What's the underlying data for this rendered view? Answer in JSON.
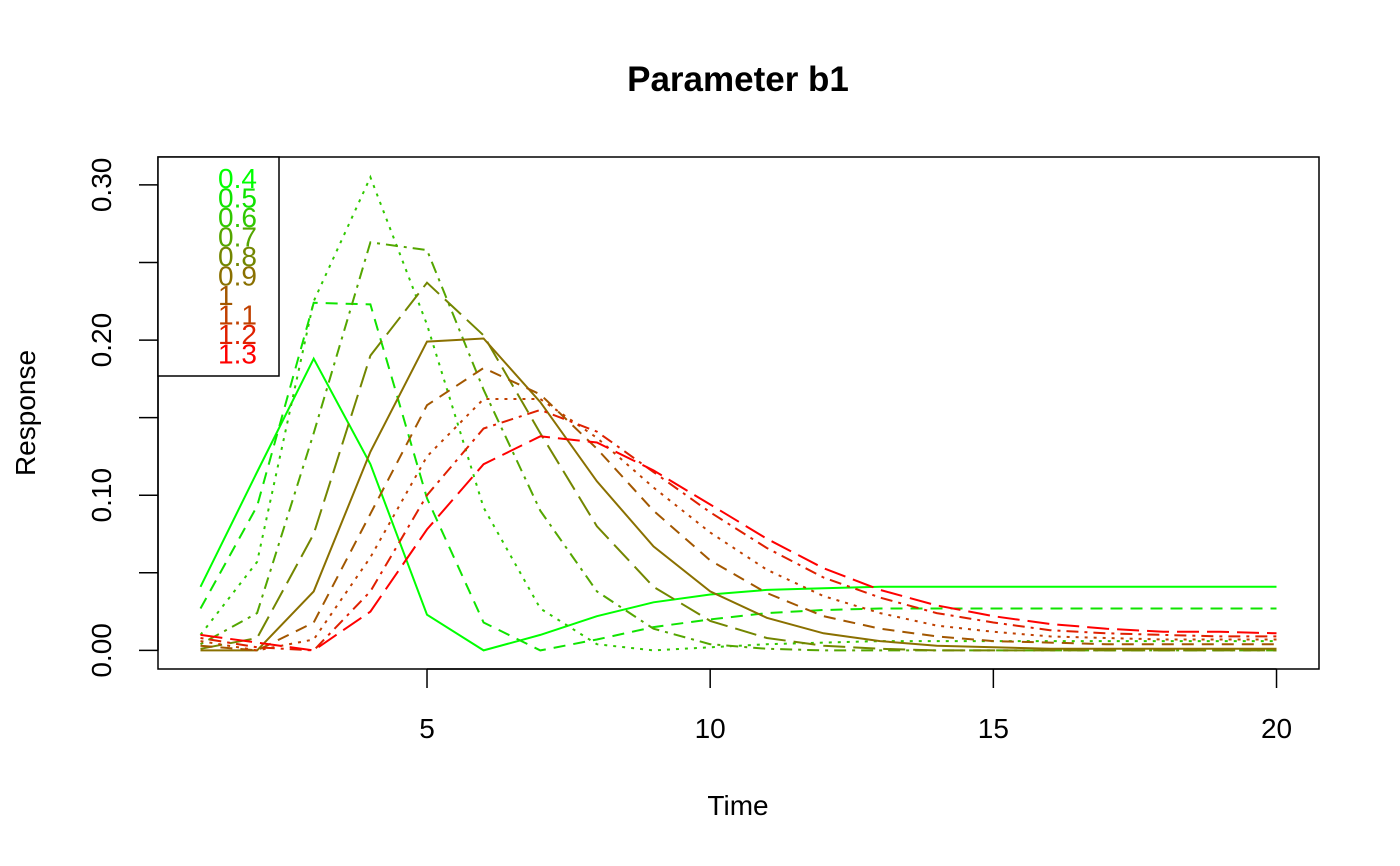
{
  "chart_data": {
    "type": "line",
    "title": "Parameter b1",
    "xlabel": "Time",
    "ylabel": "Response",
    "xlim": [
      0.25,
      20.75
    ],
    "ylim": [
      -0.012,
      0.318
    ],
    "x_ticks": [
      5,
      10,
      15,
      20
    ],
    "x_tick_labels": [
      "5",
      "10",
      "15",
      "20"
    ],
    "y_ticks": [
      0.0,
      0.05,
      0.1,
      0.15,
      0.2,
      0.25,
      0.3
    ],
    "y_tick_labels": [
      "0.00",
      "",
      "0.10",
      "",
      "0.20",
      "",
      "0.30"
    ],
    "grid": false,
    "legend_position": "top-left",
    "x": [
      1,
      2,
      3,
      4,
      5,
      6,
      7,
      8,
      9,
      10,
      11,
      12,
      13,
      14,
      15,
      16,
      17,
      18,
      19,
      20
    ],
    "series": [
      {
        "name": "0.4",
        "color": "#00ff00",
        "dash": "solid",
        "values": [
          0.041,
          0.115,
          0.188,
          0.12,
          0.023,
          0.0,
          0.01,
          0.022,
          0.031,
          0.036,
          0.039,
          0.04,
          0.041,
          0.041,
          0.041,
          0.041,
          0.041,
          0.041,
          0.041,
          0.041
        ]
      },
      {
        "name": "0.5",
        "color": "#0fe400",
        "dash": "dashed",
        "values": [
          0.027,
          0.093,
          0.224,
          0.223,
          0.098,
          0.018,
          0.0,
          0.007,
          0.015,
          0.02,
          0.024,
          0.026,
          0.027,
          0.027,
          0.027,
          0.027,
          0.027,
          0.027,
          0.027,
          0.027
        ]
      },
      {
        "name": "0.6",
        "color": "#30c800",
        "dash": "dotted",
        "values": [
          0.01,
          0.057,
          0.225,
          0.305,
          0.21,
          0.092,
          0.027,
          0.004,
          0.0,
          0.002,
          0.004,
          0.005,
          0.006,
          0.006,
          0.006,
          0.006,
          0.006,
          0.006,
          0.006,
          0.006
        ]
      },
      {
        "name": "0.7",
        "color": "#54a600",
        "dash": "dotdash",
        "values": [
          0.004,
          0.024,
          0.14,
          0.263,
          0.258,
          0.168,
          0.09,
          0.038,
          0.014,
          0.004,
          0.001,
          0.0,
          0.0,
          0.0,
          0.0,
          0.0,
          0.0,
          0.0,
          0.0,
          0.0
        ]
      },
      {
        "name": "0.8",
        "color": "#738600",
        "dash": "longdash",
        "values": [
          0.001,
          0.008,
          0.075,
          0.19,
          0.237,
          0.203,
          0.14,
          0.08,
          0.041,
          0.019,
          0.008,
          0.003,
          0.001,
          0.0,
          0.0,
          0.0,
          0.0,
          0.0,
          0.0,
          0.0
        ]
      },
      {
        "name": "0.9",
        "color": "#8a7000",
        "dash": "solid",
        "values": [
          0.0,
          0.0,
          0.038,
          0.128,
          0.199,
          0.201,
          0.16,
          0.109,
          0.067,
          0.038,
          0.021,
          0.011,
          0.006,
          0.003,
          0.002,
          0.001,
          0.001,
          0.001,
          0.001,
          0.001
        ]
      },
      {
        "name": "1",
        "color": "#a25700",
        "dash": "dashed",
        "values": [
          0.003,
          0.0,
          0.018,
          0.088,
          0.158,
          0.182,
          0.165,
          0.13,
          0.09,
          0.058,
          0.037,
          0.022,
          0.014,
          0.009,
          0.006,
          0.005,
          0.004,
          0.004,
          0.004,
          0.004
        ]
      },
      {
        "name": "1.1",
        "color": "#c04000",
        "dash": "dotted",
        "values": [
          0.006,
          0.0,
          0.007,
          0.06,
          0.125,
          0.162,
          0.162,
          0.137,
          0.105,
          0.076,
          0.052,
          0.035,
          0.024,
          0.016,
          0.012,
          0.009,
          0.008,
          0.007,
          0.007,
          0.007
        ]
      },
      {
        "name": "1.2",
        "color": "#df2000",
        "dash": "dotdash",
        "values": [
          0.008,
          0.002,
          0.0,
          0.038,
          0.1,
          0.143,
          0.155,
          0.141,
          0.115,
          0.089,
          0.066,
          0.047,
          0.034,
          0.024,
          0.018,
          0.013,
          0.011,
          0.01,
          0.009,
          0.009
        ]
      },
      {
        "name": "1.3",
        "color": "#ff0000",
        "dash": "longdash",
        "values": [
          0.01,
          0.005,
          0.0,
          0.025,
          0.078,
          0.12,
          0.138,
          0.134,
          0.116,
          0.094,
          0.072,
          0.053,
          0.039,
          0.029,
          0.022,
          0.017,
          0.014,
          0.012,
          0.012,
          0.011
        ]
      }
    ]
  }
}
